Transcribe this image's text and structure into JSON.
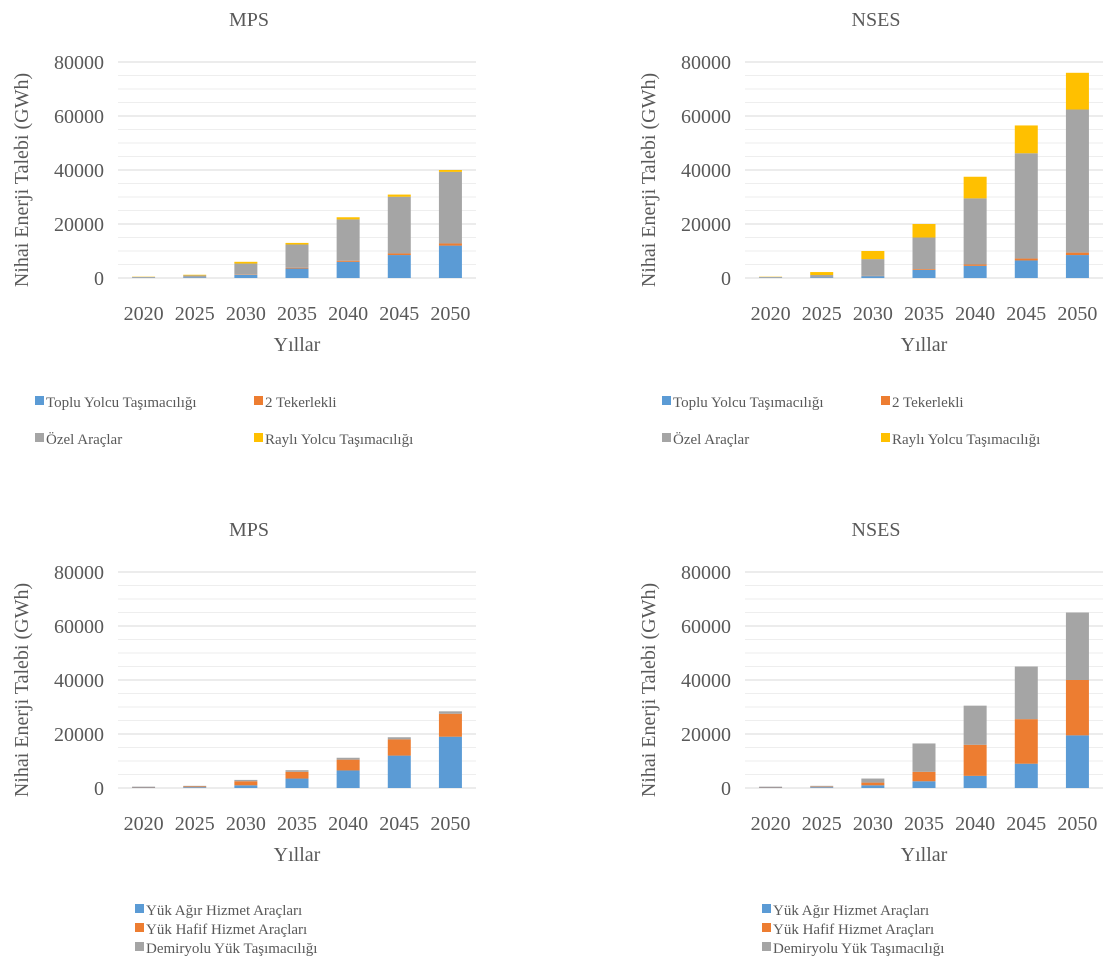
{
  "chart_data": [
    {
      "type": "bar",
      "stacked": true,
      "title": "MPS",
      "xlabel": "Yıllar",
      "ylabel": "Nihai Enerji Talebi (GWh)",
      "ylim": [
        0,
        80000
      ],
      "yticks": [
        0,
        20000,
        40000,
        60000,
        80000
      ],
      "grid": true,
      "legend_position": "bottom",
      "categories": [
        "2020",
        "2025",
        "2030",
        "2035",
        "2040",
        "2045",
        "2050"
      ],
      "series": [
        {
          "name": "Toplu Yolcu Taşımacılığı",
          "color": "#5B9BD5",
          "values": [
            100,
            300,
            1200,
            3500,
            6000,
            8500,
            12000
          ]
        },
        {
          "name": "2 Tekerlekli",
          "color": "#ED7D31",
          "values": [
            0,
            50,
            150,
            300,
            400,
            600,
            800
          ]
        },
        {
          "name": "Özel Araçlar",
          "color": "#A5A5A5",
          "values": [
            300,
            600,
            4000,
            8600,
            15300,
            21000,
            26500
          ]
        },
        {
          "name": "Raylı Yolcu Taşımacılığı",
          "color": "#FFC000",
          "values": [
            100,
            250,
            650,
            600,
            800,
            800,
            700
          ]
        }
      ]
    },
    {
      "type": "bar",
      "stacked": true,
      "title": "NSES",
      "xlabel": "Yıllar",
      "ylabel": "Nihai Enerji Talebi (GWh)",
      "ylim": [
        0,
        80000
      ],
      "yticks": [
        0,
        20000,
        40000,
        60000,
        80000
      ],
      "grid": true,
      "legend_position": "bottom",
      "categories": [
        "2020",
        "2025",
        "2030",
        "2035",
        "2040",
        "2045",
        "2050"
      ],
      "series": [
        {
          "name": "Toplu Yolcu Taşımacılığı",
          "color": "#5B9BD5",
          "values": [
            100,
            300,
            700,
            3000,
            4500,
            6500,
            8500
          ]
        },
        {
          "name": "2 Tekerlekli",
          "color": "#ED7D31",
          "values": [
            0,
            50,
            100,
            300,
            500,
            700,
            900
          ]
        },
        {
          "name": "Özel Araçlar",
          "color": "#A5A5A5",
          "values": [
            300,
            750,
            6200,
            11700,
            24500,
            39000,
            53000
          ]
        },
        {
          "name": "Raylı Yolcu Taşımacılığı",
          "color": "#FFC000",
          "values": [
            100,
            1100,
            3000,
            5000,
            8000,
            10300,
            13600
          ]
        }
      ]
    },
    {
      "type": "bar",
      "stacked": true,
      "title": "MPS",
      "xlabel": "Yıllar",
      "ylabel": "Nihai Enerji Talebi (GWh)",
      "ylim": [
        0,
        80000
      ],
      "yticks": [
        0,
        20000,
        40000,
        60000,
        80000
      ],
      "grid": true,
      "legend_position": "bottom",
      "categories": [
        "2020",
        "2025",
        "2030",
        "2035",
        "2040",
        "2045",
        "2050"
      ],
      "series": [
        {
          "name": "Yük Ağır Hizmet Araçları",
          "color": "#5B9BD5",
          "values": [
            200,
            300,
            1000,
            3500,
            6500,
            12000,
            19000
          ]
        },
        {
          "name": "Yük Hafif Hizmet Araçları",
          "color": "#ED7D31",
          "values": [
            150,
            250,
            1500,
            2500,
            4000,
            6000,
            8500
          ]
        },
        {
          "name": "Demiryolu Yük Taşımacılığı",
          "color": "#A5A5A5",
          "values": [
            150,
            250,
            500,
            600,
            700,
            800,
            900
          ]
        }
      ]
    },
    {
      "type": "bar",
      "stacked": true,
      "title": "NSES",
      "xlabel": "Yıllar",
      "ylabel": "Nihai Enerji Talebi (GWh)",
      "ylim": [
        0,
        80000
      ],
      "yticks": [
        0,
        20000,
        40000,
        60000,
        80000
      ],
      "grid": true,
      "legend_position": "bottom",
      "categories": [
        "2020",
        "2025",
        "2030",
        "2035",
        "2040",
        "2045",
        "2050"
      ],
      "series": [
        {
          "name": "Yük Ağır Hizmet Araçları",
          "color": "#5B9BD5",
          "values": [
            200,
            300,
            1000,
            2500,
            4500,
            9000,
            19500
          ]
        },
        {
          "name": "Yük Hafif Hizmet Araçları",
          "color": "#ED7D31",
          "values": [
            150,
            200,
            1000,
            3500,
            11500,
            16500,
            20500
          ]
        },
        {
          "name": "Demiryolu Yük Taşımacılığı",
          "color": "#A5A5A5",
          "values": [
            150,
            300,
            1500,
            10500,
            14500,
            19500,
            25000
          ]
        }
      ]
    }
  ]
}
